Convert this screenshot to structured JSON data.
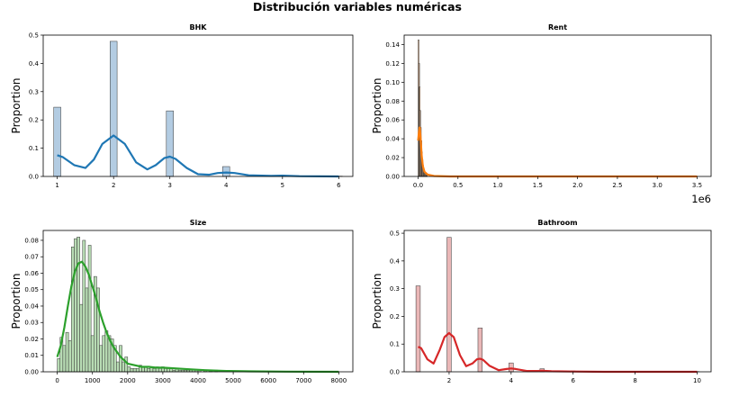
{
  "figure": {
    "title": "Distribución variables numéricas"
  },
  "chart_data": [
    {
      "type": "histogram",
      "title": "BHK",
      "xlabel": "",
      "ylabel": "Proportion",
      "xlim": [
        0.75,
        6.25
      ],
      "ylim": [
        0,
        0.5
      ],
      "x_ticks": [
        1,
        2,
        3,
        4,
        5,
        6
      ],
      "y_ticks": [
        0.0,
        0.1,
        0.2,
        0.3,
        0.4,
        0.5
      ],
      "color": "#1f77b4",
      "bin_width": 0.125,
      "bars": [
        {
          "x": 1,
          "value": 0.245
        },
        {
          "x": 2,
          "value": 0.478
        },
        {
          "x": 3,
          "value": 0.232
        },
        {
          "x": 4,
          "value": 0.035
        },
        {
          "x": 5,
          "value": 0.002
        },
        {
          "x": 6,
          "value": 0.001
        }
      ],
      "kde": [
        [
          1,
          0.075
        ],
        [
          1.1,
          0.068
        ],
        [
          1.3,
          0.04
        ],
        [
          1.5,
          0.03
        ],
        [
          1.65,
          0.06
        ],
        [
          1.8,
          0.115
        ],
        [
          2,
          0.145
        ],
        [
          2.2,
          0.115
        ],
        [
          2.4,
          0.05
        ],
        [
          2.6,
          0.025
        ],
        [
          2.75,
          0.04
        ],
        [
          2.9,
          0.065
        ],
        [
          3,
          0.07
        ],
        [
          3.1,
          0.062
        ],
        [
          3.3,
          0.03
        ],
        [
          3.5,
          0.008
        ],
        [
          3.7,
          0.006
        ],
        [
          3.85,
          0.012
        ],
        [
          4,
          0.014
        ],
        [
          4.15,
          0.012
        ],
        [
          4.4,
          0.004
        ],
        [
          4.8,
          0.002
        ],
        [
          5,
          0.003
        ],
        [
          5.3,
          0.001
        ],
        [
          6,
          0.0
        ]
      ]
    },
    {
      "type": "histogram",
      "title": "Rent",
      "xlabel": "",
      "ylabel": "Proportion",
      "xlim": [
        -175000,
        3675000
      ],
      "ylim": [
        0,
        0.15
      ],
      "x_ticks": [
        0,
        500000,
        1000000,
        1500000,
        2000000,
        2500000,
        3000000,
        3500000
      ],
      "x_tick_labels": [
        "0.0",
        "0.5",
        "1.0",
        "1.5",
        "2.0",
        "2.5",
        "3.0",
        "3.5"
      ],
      "y_ticks": [
        0.0,
        0.02,
        0.04,
        0.06,
        0.08,
        0.1,
        0.12,
        0.14
      ],
      "y_tick_labels": [
        "0.00",
        "0.02",
        "0.04",
        "0.06",
        "0.08",
        "0.10",
        "0.12",
        "0.14"
      ],
      "x_offset_label": "1e6",
      "color": "#ff7f0e",
      "bin_width": 7000,
      "bars": [
        {
          "x": 3500,
          "value": 0.145
        },
        {
          "x": 10500,
          "value": 0.12
        },
        {
          "x": 17500,
          "value": 0.095
        },
        {
          "x": 24500,
          "value": 0.07
        },
        {
          "x": 31500,
          "value": 0.052
        },
        {
          "x": 38500,
          "value": 0.038
        },
        {
          "x": 45500,
          "value": 0.026
        },
        {
          "x": 52500,
          "value": 0.018
        },
        {
          "x": 59500,
          "value": 0.012
        },
        {
          "x": 66500,
          "value": 0.008
        },
        {
          "x": 73500,
          "value": 0.006
        },
        {
          "x": 80500,
          "value": 0.004
        },
        {
          "x": 87500,
          "value": 0.003
        },
        {
          "x": 94500,
          "value": 0.002
        },
        {
          "x": 101500,
          "value": 0.002
        },
        {
          "x": 108500,
          "value": 0.001
        }
      ],
      "kde": [
        [
          0,
          0.038
        ],
        [
          10000,
          0.047
        ],
        [
          20000,
          0.052
        ],
        [
          30000,
          0.042
        ],
        [
          45000,
          0.022
        ],
        [
          60000,
          0.011
        ],
        [
          80000,
          0.005
        ],
        [
          120000,
          0.002
        ],
        [
          200000,
          0.0005
        ],
        [
          400000,
          0.0
        ],
        [
          3500000,
          0.0
        ]
      ]
    },
    {
      "type": "histogram",
      "title": "Size",
      "xlabel": "",
      "ylabel": "Proportion",
      "xlim": [
        -400,
        8400
      ],
      "ylim": [
        0,
        0.086
      ],
      "x_ticks": [
        0,
        1000,
        2000,
        3000,
        4000,
        5000,
        6000,
        7000,
        8000
      ],
      "y_ticks": [
        0.0,
        0.01,
        0.02,
        0.03,
        0.04,
        0.05,
        0.06,
        0.07,
        0.08
      ],
      "y_tick_labels": [
        "0.00",
        "0.01",
        "0.02",
        "0.03",
        "0.04",
        "0.05",
        "0.06",
        "0.07",
        "0.08"
      ],
      "color": "#2ca02c",
      "bin_width": 80,
      "bars": [
        {
          "x": 40,
          "value": 0.008
        },
        {
          "x": 120,
          "value": 0.021
        },
        {
          "x": 200,
          "value": 0.016
        },
        {
          "x": 280,
          "value": 0.024
        },
        {
          "x": 360,
          "value": 0.019
        },
        {
          "x": 440,
          "value": 0.076
        },
        {
          "x": 520,
          "value": 0.081
        },
        {
          "x": 600,
          "value": 0.082
        },
        {
          "x": 680,
          "value": 0.041
        },
        {
          "x": 760,
          "value": 0.08
        },
        {
          "x": 840,
          "value": 0.051
        },
        {
          "x": 920,
          "value": 0.077
        },
        {
          "x": 1000,
          "value": 0.022
        },
        {
          "x": 1080,
          "value": 0.058
        },
        {
          "x": 1160,
          "value": 0.051
        },
        {
          "x": 1240,
          "value": 0.016
        },
        {
          "x": 1320,
          "value": 0.022
        },
        {
          "x": 1400,
          "value": 0.025
        },
        {
          "x": 1480,
          "value": 0.022
        },
        {
          "x": 1560,
          "value": 0.02
        },
        {
          "x": 1640,
          "value": 0.016
        },
        {
          "x": 1720,
          "value": 0.006
        },
        {
          "x": 1800,
          "value": 0.016
        },
        {
          "x": 1880,
          "value": 0.006
        },
        {
          "x": 1960,
          "value": 0.009
        },
        {
          "x": 2040,
          "value": 0.003
        },
        {
          "x": 2120,
          "value": 0.002
        },
        {
          "x": 2200,
          "value": 0.002
        },
        {
          "x": 2280,
          "value": 0.002
        },
        {
          "x": 2360,
          "value": 0.004
        },
        {
          "x": 2440,
          "value": 0.003
        },
        {
          "x": 2520,
          "value": 0.003
        },
        {
          "x": 2600,
          "value": 0.002
        },
        {
          "x": 2680,
          "value": 0.003
        },
        {
          "x": 2760,
          "value": 0.002
        },
        {
          "x": 2840,
          "value": 0.003
        },
        {
          "x": 2920,
          "value": 0.002
        },
        {
          "x": 3000,
          "value": 0.003
        },
        {
          "x": 3080,
          "value": 0.002
        },
        {
          "x": 3160,
          "value": 0.002
        },
        {
          "x": 3240,
          "value": 0.002
        },
        {
          "x": 3320,
          "value": 0.001
        },
        {
          "x": 3400,
          "value": 0.002
        },
        {
          "x": 3480,
          "value": 0.001
        },
        {
          "x": 3560,
          "value": 0.001
        },
        {
          "x": 3640,
          "value": 0.001
        },
        {
          "x": 3720,
          "value": 0.001
        },
        {
          "x": 3800,
          "value": 0.001
        },
        {
          "x": 3880,
          "value": 0.001
        },
        {
          "x": 3960,
          "value": 0.001
        },
        {
          "x": 4040,
          "value": 0.001
        },
        {
          "x": 4200,
          "value": 0.001
        },
        {
          "x": 4360,
          "value": 0.001
        },
        {
          "x": 4520,
          "value": 0.001
        }
      ],
      "kde": [
        [
          0,
          0.009
        ],
        [
          100,
          0.016
        ],
        [
          200,
          0.027
        ],
        [
          300,
          0.04
        ],
        [
          400,
          0.052
        ],
        [
          500,
          0.061
        ],
        [
          600,
          0.066
        ],
        [
          700,
          0.067
        ],
        [
          800,
          0.064
        ],
        [
          900,
          0.059
        ],
        [
          1000,
          0.052
        ],
        [
          1100,
          0.045
        ],
        [
          1200,
          0.037
        ],
        [
          1300,
          0.03
        ],
        [
          1400,
          0.024
        ],
        [
          1500,
          0.019
        ],
        [
          1600,
          0.015
        ],
        [
          1700,
          0.012
        ],
        [
          1800,
          0.009
        ],
        [
          1900,
          0.007
        ],
        [
          2000,
          0.005
        ],
        [
          2200,
          0.004
        ],
        [
          2400,
          0.003
        ],
        [
          2600,
          0.003
        ],
        [
          2800,
          0.0025
        ],
        [
          3000,
          0.0025
        ],
        [
          3400,
          0.002
        ],
        [
          3800,
          0.0015
        ],
        [
          4200,
          0.001
        ],
        [
          4800,
          0.0005
        ],
        [
          5500,
          0.0003
        ],
        [
          6500,
          0.0001
        ],
        [
          8000,
          0.0
        ]
      ]
    },
    {
      "type": "histogram",
      "title": "Bathroom",
      "xlabel": "",
      "ylabel": "Proportion",
      "xlim": [
        0.55,
        10.45
      ],
      "ylim": [
        0,
        0.51
      ],
      "x_ticks": [
        2,
        4,
        6,
        8,
        10
      ],
      "y_ticks": [
        0.0,
        0.1,
        0.2,
        0.3,
        0.4,
        0.5
      ],
      "color": "#d62728",
      "bin_width": 0.14,
      "bars": [
        {
          "x": 1,
          "value": 0.31
        },
        {
          "x": 2,
          "value": 0.485
        },
        {
          "x": 3,
          "value": 0.158
        },
        {
          "x": 4,
          "value": 0.032
        },
        {
          "x": 5,
          "value": 0.011
        },
        {
          "x": 6,
          "value": 0.003
        },
        {
          "x": 7,
          "value": 0.001
        },
        {
          "x": 10,
          "value": 0.001
        }
      ],
      "kde": [
        [
          1,
          0.09
        ],
        [
          1.1,
          0.085
        ],
        [
          1.3,
          0.045
        ],
        [
          1.5,
          0.03
        ],
        [
          1.7,
          0.08
        ],
        [
          1.85,
          0.125
        ],
        [
          2,
          0.14
        ],
        [
          2.15,
          0.125
        ],
        [
          2.35,
          0.06
        ],
        [
          2.55,
          0.02
        ],
        [
          2.75,
          0.03
        ],
        [
          2.9,
          0.045
        ],
        [
          3,
          0.047
        ],
        [
          3.1,
          0.043
        ],
        [
          3.3,
          0.022
        ],
        [
          3.6,
          0.006
        ],
        [
          3.85,
          0.01
        ],
        [
          4,
          0.012
        ],
        [
          4.15,
          0.01
        ],
        [
          4.5,
          0.003
        ],
        [
          4.85,
          0.003
        ],
        [
          5,
          0.004
        ],
        [
          5.3,
          0.002
        ],
        [
          6,
          0.001
        ],
        [
          7,
          0.0
        ],
        [
          10,
          0.0
        ]
      ]
    }
  ]
}
